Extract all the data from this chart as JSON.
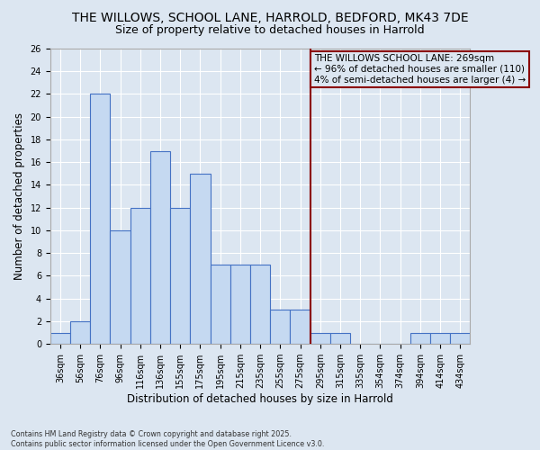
{
  "title_line1": "THE WILLOWS, SCHOOL LANE, HARROLD, BEDFORD, MK43 7DE",
  "title_line2": "Size of property relative to detached houses in Harrold",
  "xlabel": "Distribution of detached houses by size in Harrold",
  "ylabel": "Number of detached properties",
  "footnote": "Contains HM Land Registry data © Crown copyright and database right 2025.\nContains public sector information licensed under the Open Government Licence v3.0.",
  "categories": [
    "36sqm",
    "56sqm",
    "76sqm",
    "96sqm",
    "116sqm",
    "136sqm",
    "155sqm",
    "175sqm",
    "195sqm",
    "215sqm",
    "235sqm",
    "255sqm",
    "275sqm",
    "295sqm",
    "315sqm",
    "335sqm",
    "354sqm",
    "374sqm",
    "394sqm",
    "414sqm",
    "434sqm"
  ],
  "values": [
    1,
    2,
    22,
    10,
    12,
    17,
    12,
    15,
    7,
    7,
    7,
    3,
    3,
    1,
    1,
    0,
    0,
    0,
    1,
    1,
    1
  ],
  "bar_color": "#c5d9f1",
  "bar_edge_color": "#4472c4",
  "bar_edge_width": 0.8,
  "vline_index": 12,
  "vline_color": "#8b0000",
  "vline_label": "THE WILLOWS SCHOOL LANE: 269sqm\n← 96% of detached houses are smaller (110)\n4% of semi-detached houses are larger (4) →",
  "ylim": [
    0,
    26
  ],
  "yticks": [
    0,
    2,
    4,
    6,
    8,
    10,
    12,
    14,
    16,
    18,
    20,
    22,
    24,
    26
  ],
  "background_color": "#dce6f1",
  "grid_color": "#ffffff",
  "title_fontsize": 10,
  "subtitle_fontsize": 9,
  "axis_label_fontsize": 8.5,
  "tick_fontsize": 7,
  "annotation_fontsize": 7.5,
  "footnote_fontsize": 5.8
}
